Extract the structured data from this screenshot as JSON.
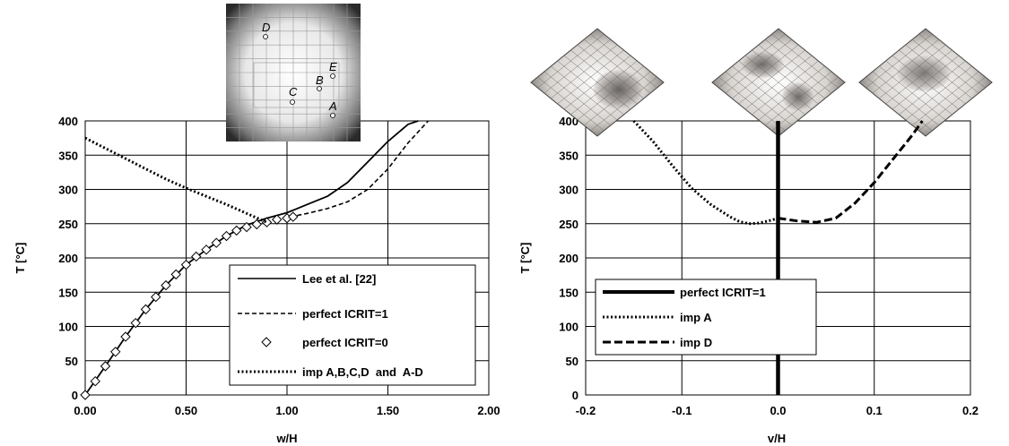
{
  "chart_data": [
    {
      "type": "line",
      "xlabel": "w/H",
      "ylabel": "T [°C]",
      "xlim": [
        0,
        2
      ],
      "ylim": [
        0,
        400
      ],
      "xticks": [
        "0.00",
        "0.50",
        "1.00",
        "1.50",
        "2.00"
      ],
      "yticks": [
        "0",
        "50",
        "100",
        "150",
        "200",
        "250",
        "300",
        "350",
        "400"
      ],
      "grid": true,
      "legend_position": "bottom-right",
      "series": [
        {
          "name": "Lee et al. [22]",
          "style": "solid",
          "color": "#000000",
          "x": [
            0,
            0.1,
            0.2,
            0.3,
            0.4,
            0.5,
            0.6,
            0.7,
            0.8,
            0.9,
            1.0,
            1.05,
            1.1,
            1.2,
            1.3,
            1.4,
            1.5,
            1.6,
            1.65
          ],
          "y": [
            0,
            42,
            85,
            125,
            160,
            190,
            212,
            232,
            248,
            258,
            266,
            272,
            278,
            290,
            310,
            340,
            370,
            395,
            400
          ]
        },
        {
          "name": "perfect ICRIT=1",
          "style": "dashed",
          "color": "#000000",
          "x": [
            1.05,
            1.1,
            1.2,
            1.3,
            1.4,
            1.5,
            1.6,
            1.7
          ],
          "y": [
            262,
            265,
            272,
            282,
            300,
            330,
            368,
            400
          ]
        },
        {
          "name": "perfect ICRIT=0",
          "style": "markers",
          "color": "#000000",
          "x": [
            0,
            0.05,
            0.1,
            0.15,
            0.2,
            0.25,
            0.3,
            0.35,
            0.4,
            0.45,
            0.5,
            0.55,
            0.6,
            0.65,
            0.7,
            0.75,
            0.8,
            0.85,
            0.9,
            0.95,
            1.0,
            1.03
          ],
          "y": [
            0,
            20,
            42,
            63,
            85,
            105,
            125,
            143,
            160,
            176,
            190,
            202,
            212,
            222,
            232,
            240,
            245,
            249,
            252,
            256,
            258,
            260
          ]
        },
        {
          "name": "imp A,B,C,D  and  A-D",
          "style": "dotted",
          "color": "#000000",
          "x": [
            0,
            0.1,
            0.2,
            0.3,
            0.4,
            0.5,
            0.6,
            0.7,
            0.8,
            0.9
          ],
          "y": [
            375,
            360,
            345,
            330,
            315,
            302,
            290,
            278,
            265,
            252
          ]
        }
      ],
      "inset_points": [
        "D",
        "E",
        "B",
        "C",
        "A"
      ]
    },
    {
      "type": "line",
      "xlabel": "v/H",
      "ylabel": "T [°C]",
      "xlim": [
        -0.2,
        0.2
      ],
      "ylim": [
        0,
        400
      ],
      "xticks": [
        "-0.2",
        "-0.1",
        "0.0",
        "0.1",
        "0.2"
      ],
      "yticks": [
        "0",
        "50",
        "100",
        "150",
        "200",
        "250",
        "300",
        "350",
        "400"
      ],
      "grid": true,
      "legend_position": "bottom-left",
      "series": [
        {
          "name": "perfect ICRIT=1",
          "style": "thick-solid",
          "color": "#000000",
          "x": [
            0,
            0
          ],
          "y": [
            0,
            400
          ]
        },
        {
          "name": "imp A",
          "style": "dotted",
          "color": "#000000",
          "x": [
            -0.15,
            -0.13,
            -0.11,
            -0.09,
            -0.07,
            -0.05,
            -0.04,
            -0.03,
            -0.02,
            -0.01,
            0.0
          ],
          "y": [
            400,
            370,
            335,
            302,
            278,
            260,
            253,
            250,
            251,
            254,
            258
          ]
        },
        {
          "name": "imp D",
          "style": "dashed",
          "color": "#000000",
          "x": [
            0.0,
            0.02,
            0.04,
            0.06,
            0.08,
            0.1,
            0.12,
            0.14,
            0.15
          ],
          "y": [
            258,
            254,
            252,
            258,
            280,
            310,
            345,
            380,
            400
          ]
        }
      ]
    }
  ]
}
